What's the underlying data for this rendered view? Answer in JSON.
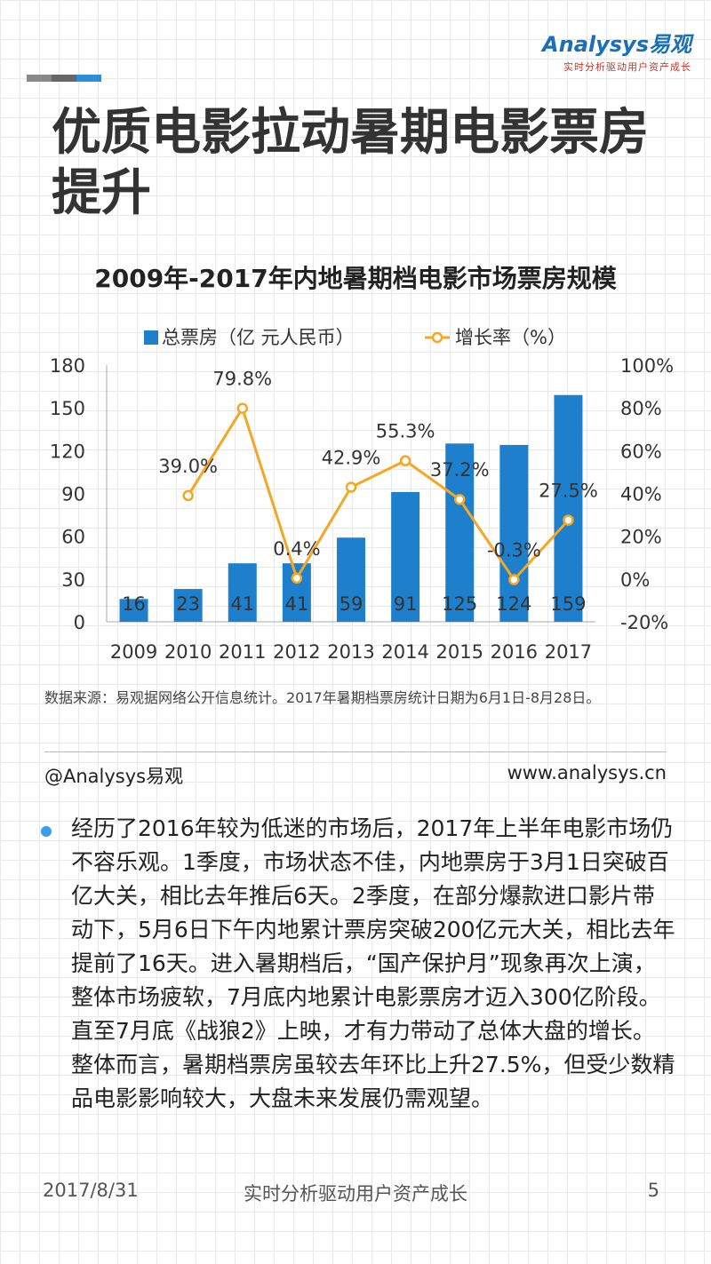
{
  "logo": {
    "name": "Analysys易观",
    "slogan": "实时分析驱动用户资产成长"
  },
  "colors": {
    "bar": "#1e80cc",
    "line": "#f5a623",
    "accent": "#1a6fb8",
    "deco_dark": "#8a8a8a",
    "deco_mid": "#666666",
    "deco_blue": "#2b8fd8"
  },
  "page_title": "优质电影拉动暑期电影票房提升",
  "chart_data": {
    "type": "bar",
    "title": "2009年-2017年内地暑期档电影市场票房规模",
    "categories": [
      "2009",
      "2010",
      "2011",
      "2012",
      "2013",
      "2014",
      "2015",
      "2016",
      "2017"
    ],
    "series": [
      {
        "name": "总票房（亿 元人民币）",
        "type": "bar",
        "axis": "left",
        "values": [
          16,
          23,
          41,
          41,
          59,
          91,
          125,
          124,
          159
        ]
      },
      {
        "name": "增长率（%）",
        "type": "line",
        "axis": "right",
        "values": [
          null,
          39.0,
          79.8,
          0.4,
          42.9,
          55.3,
          37.2,
          -0.3,
          27.5
        ]
      }
    ],
    "bar_labels": [
      "16",
      "23",
      "41",
      "41",
      "59",
      "91",
      "125",
      "124",
      "159"
    ],
    "line_labels": [
      "",
      "39.0%",
      "79.8%",
      "0.4%",
      "42.9%",
      "55.3%",
      "37.2%",
      "-0.3%",
      "27.5%"
    ],
    "ylim_left": [
      0,
      180
    ],
    "yticks_left": [
      "0",
      "30",
      "60",
      "90",
      "120",
      "150",
      "180"
    ],
    "ylim_right": [
      -20,
      100
    ],
    "yticks_right": [
      "-20%",
      "0%",
      "20%",
      "40%",
      "60%",
      "80%",
      "100%"
    ],
    "legend_position": "top"
  },
  "source_note": "数据来源：易观据网络公开信息统计。2017年暑期档票房统计日期为6月1日-8月28日。",
  "handle": "@Analysys易观",
  "website": "www.analysys.cn",
  "body_text": "经历了2016年较为低迷的市场后，2017年上半年电影市场仍不容乐观。1季度，市场状态不佳，内地票房于3月1日突破百亿大关，相比去年推后6天。2季度，在部分爆款进口影片带动下，5月6日下午内地累计票房突破200亿元大关，相比去年提前了16天。进入暑期档后，“国产保护月”现象再次上演，整体市场疲软，7月底内地累计电影票房才迈入300亿阶段。直至7月底《战狼2》上映，才有力带动了总体大盘的增长。整体而言，暑期档票房虽较去年环比上升27.5%，但受少数精品电影影响较大，大盘未来发展仍需观望。",
  "footer": {
    "date": "2017/8/31",
    "slogan": "实时分析驱动用户资产成长",
    "page": "5"
  }
}
